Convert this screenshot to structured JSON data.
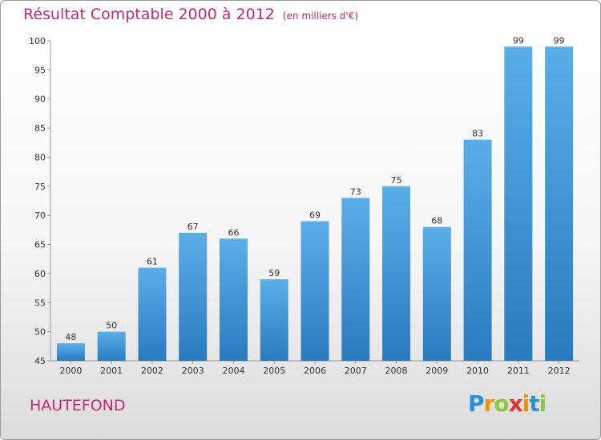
{
  "title": "Résultat Comptable 2000 à 2012",
  "unit": "(en milliers d'€)",
  "location": "HAUTEFOND",
  "logo": {
    "letters": [
      "P",
      "r",
      "o",
      "x",
      "i",
      "t",
      "i"
    ],
    "colors": [
      "#2a8fd8",
      "#f29200",
      "#8cc63f",
      "#e6332a",
      "#f29200",
      "#2a8fd8",
      "#8cc63f"
    ]
  },
  "colors": {
    "bar_top": "#5aaee8",
    "bar_bottom": "#2a7bbf",
    "title": "#c8286e"
  },
  "chart_data": {
    "type": "bar",
    "categories": [
      "2000",
      "2001",
      "2002",
      "2003",
      "2004",
      "2005",
      "2006",
      "2007",
      "2008",
      "2009",
      "2010",
      "2011",
      "2012"
    ],
    "values": [
      48,
      50,
      61,
      67,
      66,
      59,
      69,
      73,
      75,
      68,
      83,
      99,
      99
    ],
    "ylim": [
      45,
      100
    ],
    "yticks": [
      45,
      50,
      55,
      60,
      65,
      70,
      75,
      80,
      85,
      90,
      95,
      100
    ],
    "grid": false
  }
}
